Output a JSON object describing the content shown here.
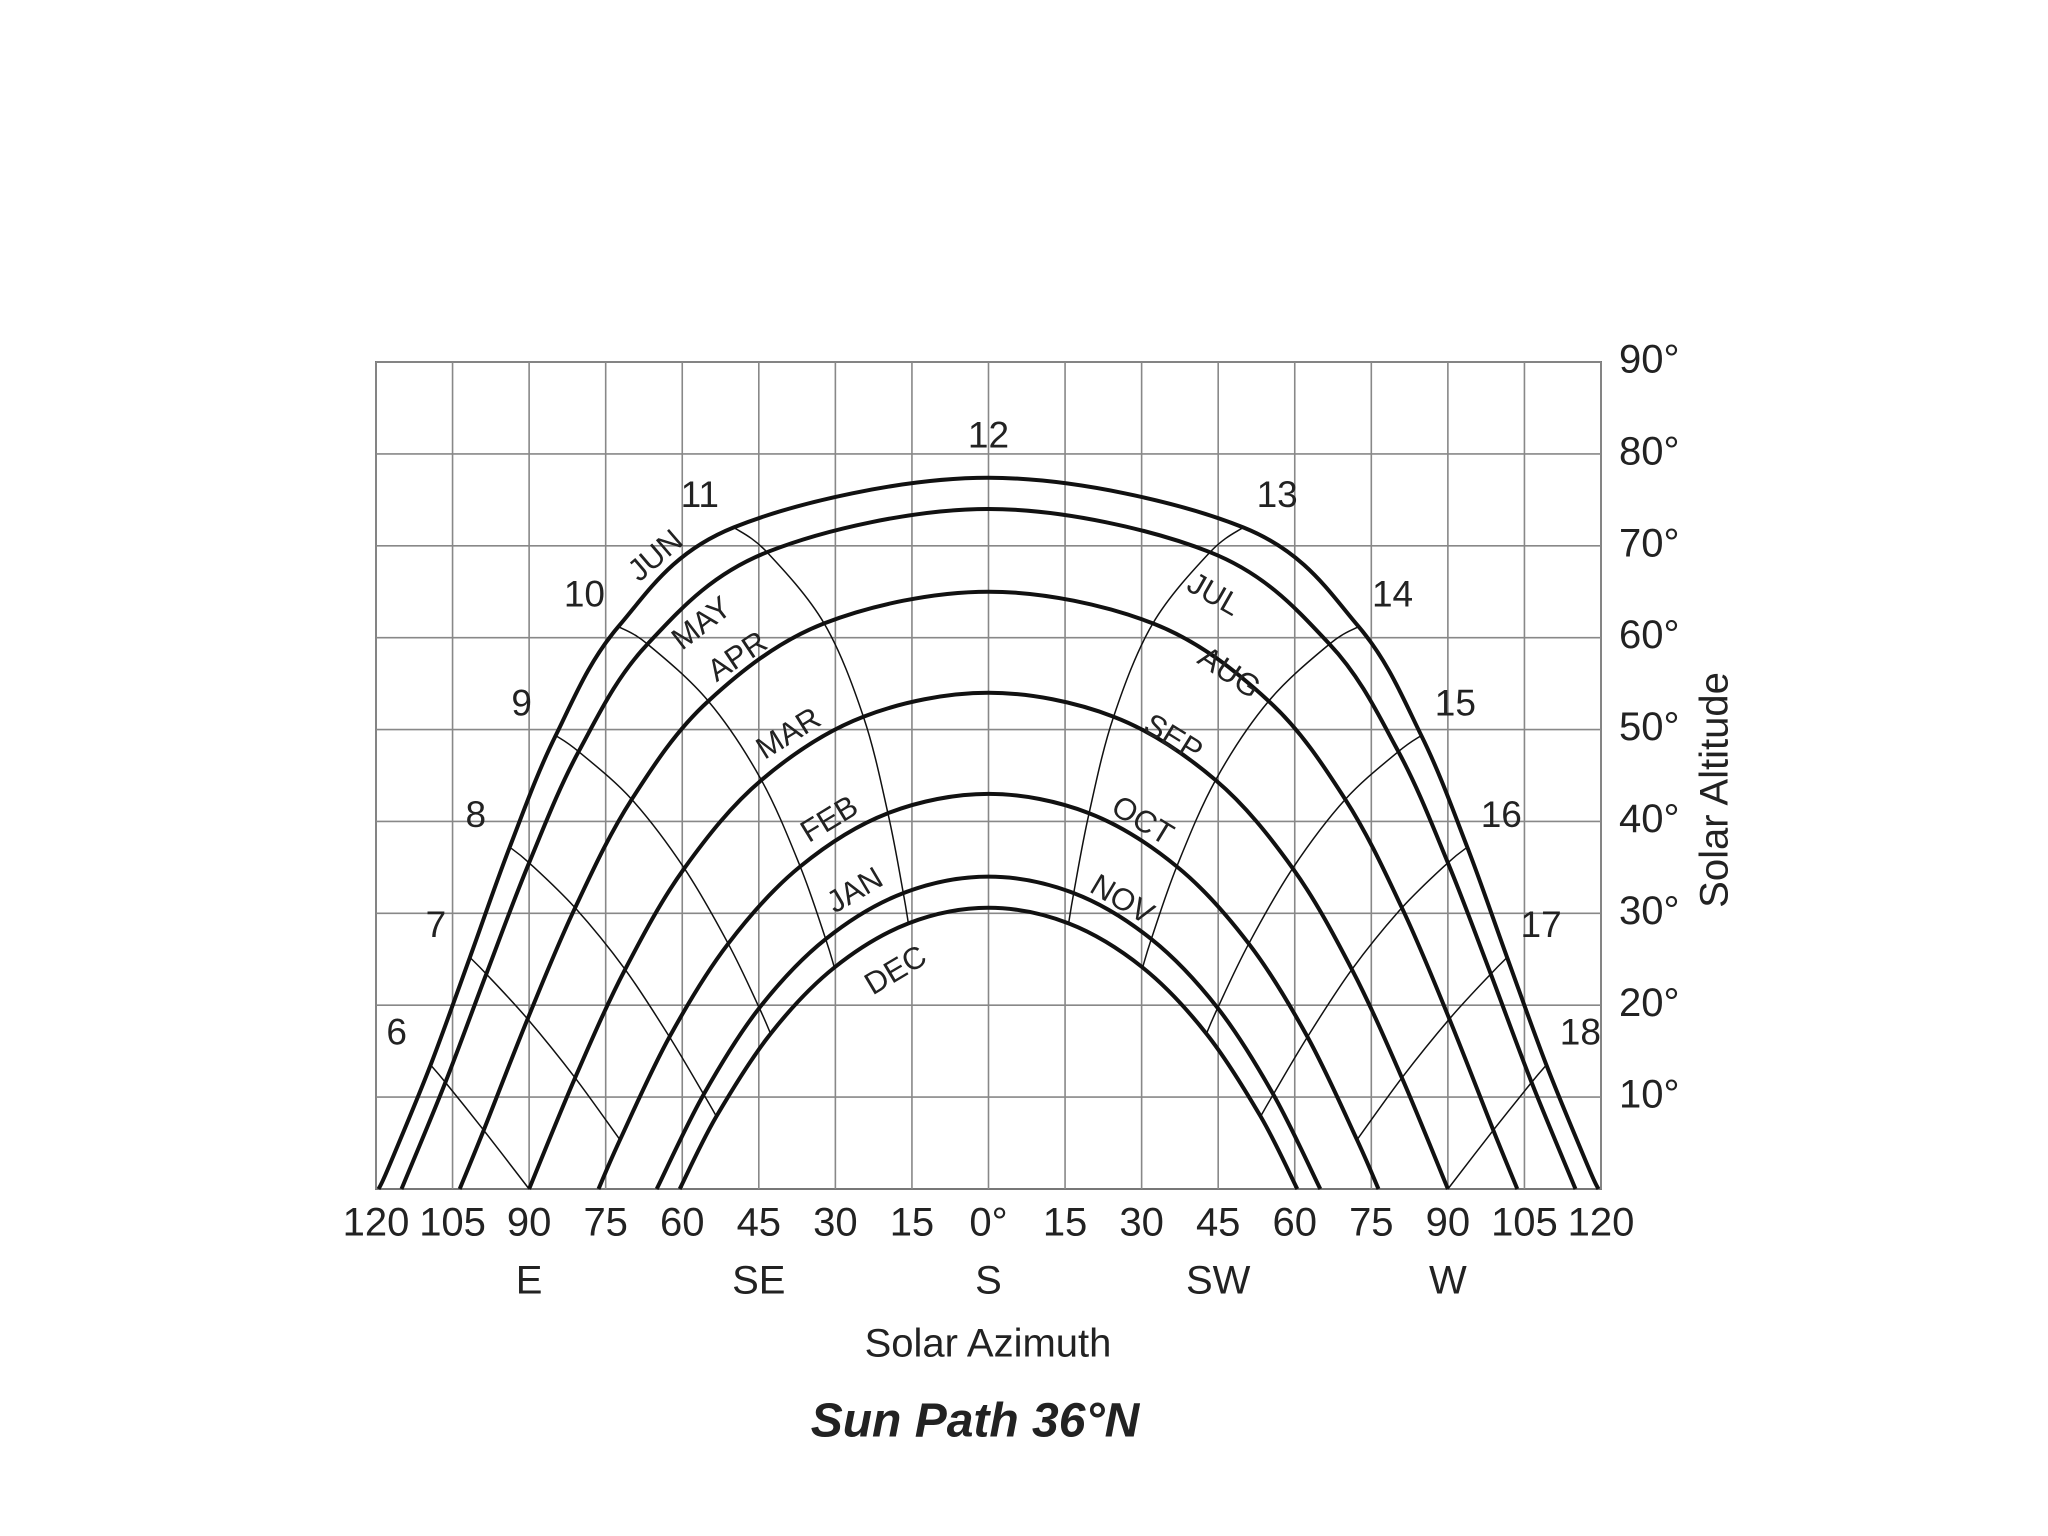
{
  "chart_data": {
    "type": "sunpath",
    "title": "Sun Path 36°N",
    "x_label": "Solar Azimuth",
    "y_label": "Solar Altitude",
    "xlim": [
      -120,
      120
    ],
    "ylim": [
      0,
      90
    ],
    "grid": true,
    "xticks": [
      {
        "value": -120,
        "label": "120"
      },
      {
        "value": -105,
        "label": "105"
      },
      {
        "value": -90,
        "label": "90"
      },
      {
        "value": -75,
        "label": "75"
      },
      {
        "value": -60,
        "label": "60"
      },
      {
        "value": -45,
        "label": "45"
      },
      {
        "value": -30,
        "label": "30"
      },
      {
        "value": -15,
        "label": "15"
      },
      {
        "value": 0,
        "label": "0°"
      },
      {
        "value": 15,
        "label": "15"
      },
      {
        "value": 30,
        "label": "30"
      },
      {
        "value": 45,
        "label": "45"
      },
      {
        "value": 60,
        "label": "60"
      },
      {
        "value": 75,
        "label": "75"
      },
      {
        "value": 90,
        "label": "90"
      },
      {
        "value": 105,
        "label": "105"
      },
      {
        "value": 120,
        "label": "120"
      }
    ],
    "compass": [
      {
        "value": -90,
        "label": "E"
      },
      {
        "value": -45,
        "label": "SE"
      },
      {
        "value": 0,
        "label": "S"
      },
      {
        "value": 45,
        "label": "SW"
      },
      {
        "value": 90,
        "label": "W"
      }
    ],
    "yticks": [
      {
        "value": 10,
        "label": "10°"
      },
      {
        "value": 20,
        "label": "20°"
      },
      {
        "value": 30,
        "label": "30°"
      },
      {
        "value": 40,
        "label": "40°"
      },
      {
        "value": 50,
        "label": "50°"
      },
      {
        "value": 60,
        "label": "60°"
      },
      {
        "value": 70,
        "label": "70°"
      },
      {
        "value": 80,
        "label": "80°"
      },
      {
        "value": 90,
        "label": "90°"
      }
    ],
    "color": "#111111",
    "noon_label": "12",
    "series": [
      {
        "labels": [
          "JUN"
        ],
        "x": [
          -119.5,
          -117.5,
          -109.3,
          -101.6,
          -93.8,
          -84.8,
          -72.5,
          -49.9,
          0,
          49.9,
          72.5,
          84.8,
          93.8,
          101.6,
          109.3,
          117.5,
          119.5
        ],
        "values": [
          0,
          2.4,
          13.5,
          25.2,
          37.2,
          49.35,
          61.2,
          72.0,
          77.4,
          72.0,
          61.2,
          49.35,
          37.2,
          25.2,
          13.5,
          2.4,
          0
        ]
      },
      {
        "labels": [
          "MAY",
          "JUL"
        ],
        "x": [
          -115.0,
          -106.4,
          -98.4,
          -90.0,
          -80.3,
          -66.8,
          -43.4,
          0,
          43.4,
          66.8,
          80.3,
          90.0,
          98.4,
          106.4,
          115.0
        ],
        "values": [
          0,
          11.6,
          23.4,
          35.5,
          47.6,
          59.3,
          69.3,
          74.0,
          69.3,
          59.3,
          47.6,
          35.5,
          23.4,
          11.6,
          0
        ]
      },
      {
        "labels": [
          "APR",
          "AUG"
        ],
        "x": [
          -103.6,
          -98.9,
          -90.3,
          -81.0,
          -69.9,
          -54.9,
          -32.2,
          0,
          32.2,
          54.9,
          69.9,
          81.0,
          90.3,
          98.9,
          103.6
        ],
        "values": [
          0,
          6.4,
          18.5,
          30.6,
          42.4,
          53.1,
          61.55,
          65.0,
          61.55,
          53.1,
          42.4,
          30.6,
          18.5,
          6.4,
          0
        ]
      },
      {
        "labels": [
          "MAR",
          "SEP"
        ],
        "x": [
          -90,
          -81.0,
          -71.2,
          -59.6,
          -44.5,
          -24.5,
          0,
          24.5,
          44.5,
          59.6,
          71.2,
          81.0,
          90
        ],
        "values": [
          0,
          12.1,
          23.9,
          34.9,
          44.5,
          51.4,
          54.0,
          51.4,
          44.5,
          34.9,
          23.9,
          12.1,
          0
        ]
      },
      {
        "labels": [
          "FEB",
          "OCT"
        ],
        "x": [
          -76.4,
          -72.2,
          -62.5,
          -51.0,
          -36.9,
          -19.7,
          0,
          19.7,
          36.9,
          51.0,
          62.5,
          72.2,
          76.4
        ],
        "values": [
          0,
          5.35,
          16.55,
          26.7,
          35.1,
          40.9,
          43.0,
          40.9,
          35.1,
          26.7,
          16.55,
          5.35,
          0
        ]
      },
      {
        "labels": [
          "JAN",
          "NOV"
        ],
        "x": [
          -65.0,
          -55.8,
          -44.9,
          -31.9,
          -16.7,
          0,
          16.7,
          31.9,
          44.9,
          55.8,
          65.0
        ],
        "values": [
          0,
          10.3,
          19.7,
          27.2,
          32.2,
          34.0,
          32.2,
          27.2,
          19.7,
          10.3,
          0
        ]
      },
      {
        "labels": [
          "DEC"
        ],
        "x": [
          -60.5,
          -53.3,
          -42.7,
          -30.2,
          -15.7,
          0,
          15.7,
          30.2,
          42.7,
          53.3,
          60.5
        ],
        "values": [
          0,
          7.9,
          16.9,
          24.1,
          28.9,
          30.6,
          28.9,
          24.1,
          16.9,
          7.9,
          0
        ]
      }
    ],
    "hour_lines": [
      {
        "label": "6",
        "x": [
          -109.3,
          -106.4,
          -98.9,
          -90
        ],
        "values": [
          13.5,
          11.6,
          6.4,
          0
        ]
      },
      {
        "label": "7",
        "x": [
          -101.6,
          -98.4,
          -90.3,
          -81.0,
          -72.2
        ],
        "values": [
          25.2,
          23.4,
          18.5,
          12.1,
          5.35
        ]
      },
      {
        "label": "8",
        "x": [
          -93.8,
          -90.0,
          -81.0,
          -71.2,
          -62.5,
          -55.8,
          -53.3
        ],
        "values": [
          37.2,
          35.5,
          30.6,
          23.9,
          16.55,
          10.3,
          7.9
        ]
      },
      {
        "label": "9",
        "x": [
          -84.8,
          -80.3,
          -69.9,
          -59.6,
          -51.0,
          -44.9,
          -42.7
        ],
        "values": [
          49.35,
          47.6,
          42.4,
          34.9,
          26.7,
          19.7,
          16.9
        ]
      },
      {
        "label": "10",
        "x": [
          -72.5,
          -66.8,
          -54.9,
          -44.5,
          -36.9,
          -31.9,
          -30.2
        ],
        "values": [
          61.2,
          59.3,
          53.1,
          44.5,
          35.1,
          27.2,
          24.1
        ]
      },
      {
        "label": "11",
        "x": [
          -49.9,
          -43.4,
          -32.2,
          -24.5,
          -19.7,
          -16.7,
          -15.7
        ],
        "values": [
          72.0,
          69.3,
          61.55,
          51.4,
          40.9,
          32.2,
          28.9
        ]
      },
      {
        "label": "13",
        "x": [
          49.9,
          43.4,
          32.2,
          24.5,
          19.7,
          16.7,
          15.7
        ],
        "values": [
          72.0,
          69.3,
          61.55,
          51.4,
          40.9,
          32.2,
          28.9
        ]
      },
      {
        "label": "14",
        "x": [
          72.5,
          66.8,
          54.9,
          44.5,
          36.9,
          31.9,
          30.2
        ],
        "values": [
          61.2,
          59.3,
          53.1,
          44.5,
          35.1,
          27.2,
          24.1
        ]
      },
      {
        "label": "15",
        "x": [
          84.8,
          80.3,
          69.9,
          59.6,
          51.0,
          44.9,
          42.7
        ],
        "values": [
          49.35,
          47.6,
          42.4,
          34.9,
          26.7,
          19.7,
          16.9
        ]
      },
      {
        "label": "16",
        "x": [
          93.8,
          90.0,
          81.0,
          71.2,
          62.5,
          55.8,
          53.3
        ],
        "values": [
          37.2,
          35.5,
          30.6,
          23.9,
          16.55,
          10.3,
          7.9
        ]
      },
      {
        "label": "17",
        "x": [
          101.6,
          98.4,
          90.3,
          81.0,
          72.2
        ],
        "values": [
          25.2,
          23.4,
          18.5,
          12.1,
          5.35
        ]
      },
      {
        "label": "18",
        "x": [
          109.3,
          106.4,
          98.9,
          90
        ],
        "values": [
          13.5,
          11.6,
          6.4,
          0
        ]
      }
    ]
  }
}
